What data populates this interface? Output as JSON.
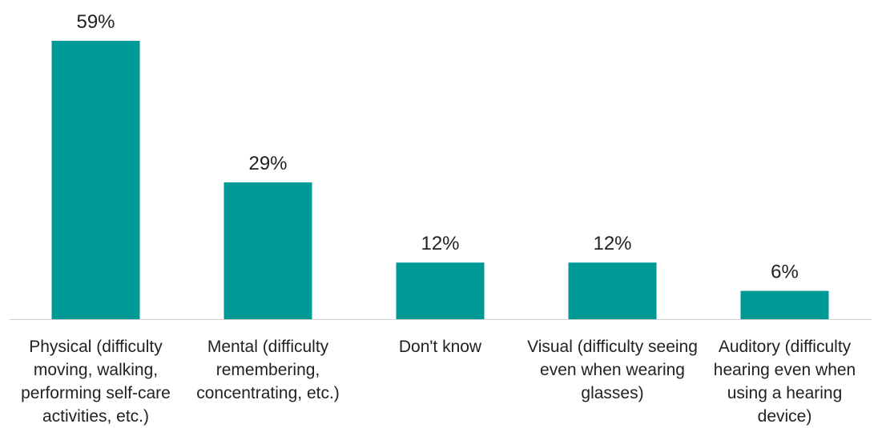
{
  "colors": {
    "bar": "#009a96",
    "axis": "#d0d0d0",
    "text": "#222222"
  },
  "chart_data": {
    "type": "bar",
    "categories": [
      "Physical (difficulty moving, walking, performing self-care activities, etc.)",
      "Mental (difficulty remembering, concentrating, etc.)",
      "Don't know",
      "Visual (difficulty seeing even when wearing glasses)",
      "Auditory (difficulty hearing even when using a hearing device)"
    ],
    "values": [
      59,
      29,
      12,
      12,
      6
    ],
    "data_labels": [
      "59%",
      "29%",
      "12%",
      "12%",
      "6%"
    ],
    "ylim": [
      0,
      59
    ],
    "grid": false,
    "legend": "none"
  }
}
